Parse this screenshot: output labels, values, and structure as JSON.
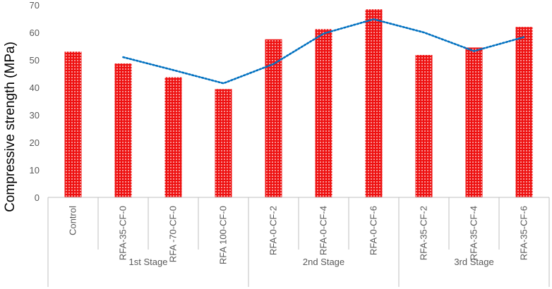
{
  "chart_data": {
    "type": "bar",
    "title": "",
    "xlabel": "",
    "ylabel": "Compressive strength (MPa)",
    "ylim": [
      0,
      70
    ],
    "yticks": [
      0,
      10,
      20,
      30,
      40,
      50,
      60,
      70
    ],
    "grid": false,
    "categories": [
      "Control",
      "RFA-35-CF-0",
      "RFA -70-CF-0",
      "RFA 100-CF-0",
      "RFA-0-CF-2",
      "RFA-0-CF-4",
      "RFA-0-CF-6",
      "RFA-35-CF-2",
      "RFA-35-CF-4",
      "RFA-35-CF-6"
    ],
    "groups": [
      {
        "label": "1st Stage",
        "categories": [
          "Control",
          "RFA-35-CF-0",
          "RFA -70-CF-0",
          "RFA 100-CF-0"
        ]
      },
      {
        "label": "2nd Stage",
        "categories": [
          "RFA-0-CF-2",
          "RFA-0-CF-4",
          "RFA-0-CF-6"
        ]
      },
      {
        "label": "3rd Stage",
        "categories": [
          "RFA-35-CF-2",
          "RFA-35-CF-4",
          "RFA-35-CF-6"
        ]
      }
    ],
    "series": [
      {
        "type": "bar",
        "values": [
          53.0,
          48.7,
          43.7,
          39.4,
          57.5,
          61.2,
          68.4,
          51.8,
          54.5,
          62.0
        ]
      },
      {
        "type": "line",
        "style": "dotted",
        "x": [
          "RFA-35-CF-0",
          "RFA -70-CF-0",
          "RFA 100-CF-0",
          "RFA-0-CF-2",
          "RFA-0-CF-4",
          "RFA-0-CF-6",
          "RFA-35-CF-2",
          "RFA-35-CF-4",
          "RFA-35-CF-6"
        ],
        "values": [
          51.0,
          46.3,
          41.5,
          48.5,
          59.6,
          64.8,
          60.0,
          53.2,
          58.3
        ]
      }
    ],
    "colors": {
      "bar": "#ee1111",
      "bar_dots": "#ffffff",
      "line": "#0070c0",
      "axis": "#bfbfbf",
      "text": "#595959"
    }
  }
}
